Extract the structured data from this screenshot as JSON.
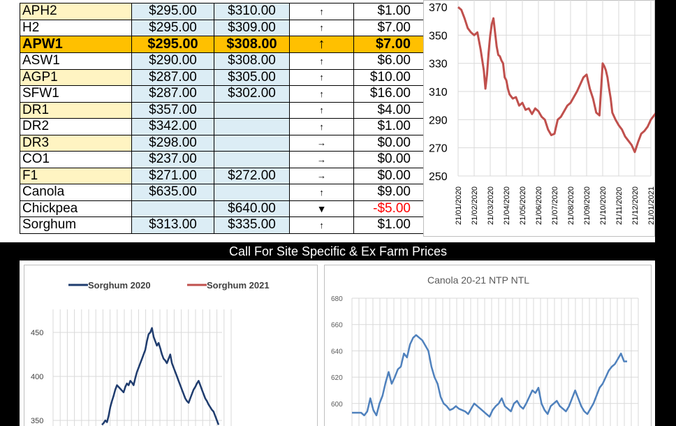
{
  "table": {
    "rows": [
      {
        "grade": "APH2",
        "p1": "$295.00",
        "p2": "$310.00",
        "trend": "↑",
        "change": "$1.00",
        "alt": true
      },
      {
        "grade": "H2",
        "p1": "$295.00",
        "p2": "$309.00",
        "trend": "↑",
        "change": "$7.00",
        "alt": false
      },
      {
        "grade": "APW1",
        "p1": "$295.00",
        "p2": "$308.00",
        "trend": "↑",
        "change": "$7.00",
        "alt": false,
        "highlight": true
      },
      {
        "grade": "ASW1",
        "p1": "$290.00",
        "p2": "$308.00",
        "trend": "↑",
        "change": "$6.00",
        "alt": false
      },
      {
        "grade": "AGP1",
        "p1": "$287.00",
        "p2": "$305.00",
        "trend": "↑",
        "change": "$10.00",
        "alt": true
      },
      {
        "grade": "SFW1",
        "p1": "$287.00",
        "p2": "$302.00",
        "trend": "↑",
        "change": "$16.00",
        "alt": false
      },
      {
        "grade": "DR1",
        "p1": "$357.00",
        "p2": "",
        "trend": "↑",
        "change": "$4.00",
        "alt": true
      },
      {
        "grade": "DR2",
        "p1": "$342.00",
        "p2": "",
        "trend": "↑",
        "change": "$1.00",
        "alt": false
      },
      {
        "grade": "DR3",
        "p1": "$298.00",
        "p2": "",
        "trend": "→",
        "change": "$0.00",
        "alt": true
      },
      {
        "grade": "CO1",
        "p1": "$237.00",
        "p2": "",
        "trend": "→",
        "change": "$0.00",
        "alt": false
      },
      {
        "grade": "F1",
        "p1": "$271.00",
        "p2": "$272.00",
        "trend": "→",
        "change": "$0.00",
        "alt": true
      },
      {
        "grade": "Canola",
        "p1": "$635.00",
        "p2": "",
        "trend": "↑",
        "change": "$9.00",
        "alt": false
      },
      {
        "grade": "Chickpea",
        "p1": "",
        "p2": "$640.00",
        "trend": "▼",
        "change": "-$5.00",
        "alt": false,
        "negative": true
      },
      {
        "grade": "Sorghum",
        "p1": "$313.00",
        "p2": "$335.00",
        "trend": "↑",
        "change": "$1.00",
        "alt": false
      }
    ]
  },
  "banner": {
    "text": "Call For Site Specific & Ex Farm Prices"
  },
  "colors": {
    "red_series": "#c0504d",
    "blue_series": "#4f81bd",
    "navy_series": "#1f3c6e",
    "highlight": "#ffc000",
    "cell_blue": "#dcedf5",
    "cell_yellow": "#fff4c2"
  },
  "charts": [
    {
      "type": "line",
      "id": "apw1-chart",
      "title": "",
      "y_ticks": [
        "350",
        "330",
        "310",
        "290",
        "270",
        "250"
      ],
      "y_partial_top": "370",
      "ylim": [
        250,
        375
      ],
      "x_ticks": [
        "21/01/2020",
        "21/02/2020",
        "21/03/2020",
        "21/04/2020",
        "21/05/2020",
        "21/06/2020",
        "21/07/2020",
        "21/08/2020",
        "21/09/2020",
        "21/10/2020",
        "21/11/2020",
        "21/12/2020",
        "21/01/2021"
      ],
      "series": [
        {
          "color": "#c0504d",
          "x": [
            0,
            0.2,
            0.4,
            0.6,
            0.8,
            1.0,
            1.2,
            1.4,
            1.6,
            1.7,
            1.8,
            1.9,
            2.0,
            2.1,
            2.2,
            2.3,
            2.4,
            2.5,
            2.6,
            2.7,
            2.8,
            2.9,
            3.0,
            3.1,
            3.2,
            3.4,
            3.6,
            3.8,
            4.0,
            4.2,
            4.4,
            4.6,
            4.8,
            5.0,
            5.2,
            5.4,
            5.6,
            5.8,
            6.0,
            6.2,
            6.4,
            6.6,
            6.8,
            7.0,
            7.2,
            7.4,
            7.6,
            7.8,
            8.0,
            8.2,
            8.4,
            8.6,
            8.8,
            9.0,
            9.1,
            9.2,
            9.3,
            9.4,
            9.5,
            9.6,
            9.8,
            10.0,
            10.2,
            10.4,
            10.6,
            10.8,
            11.0,
            11.2,
            11.4,
            11.6,
            11.8,
            12.0,
            12.2,
            12.4,
            12.6,
            12.8,
            13.0
          ],
          "y": [
            370,
            368,
            362,
            355,
            352,
            350,
            352,
            340,
            325,
            312,
            322,
            338,
            350,
            358,
            362,
            352,
            342,
            336,
            335,
            332,
            330,
            320,
            318,
            312,
            308,
            305,
            306,
            300,
            302,
            297,
            298,
            294,
            298,
            296,
            292,
            290,
            283,
            279,
            280,
            290,
            292,
            296,
            300,
            302,
            306,
            310,
            315,
            320,
            322,
            312,
            305,
            295,
            293,
            330,
            328,
            325,
            320,
            312,
            305,
            295,
            290,
            286,
            283,
            278,
            275,
            272,
            267,
            274,
            280,
            282,
            285,
            290,
            293,
            296,
            294,
            292,
            290
          ]
        }
      ]
    },
    {
      "type": "line",
      "id": "sorghum-chart",
      "title": "",
      "legend": [
        {
          "name": "Sorghum 2020",
          "color": "#1f3c6e"
        },
        {
          "name": "Sorghum 2021",
          "color": "#c0504d"
        }
      ],
      "y_ticks": [
        "450",
        "400",
        "350"
      ],
      "ylim": [
        340,
        470
      ],
      "series": [
        {
          "name": "Sorghum 2020",
          "color": "#1f3c6e",
          "x": [
            0,
            1,
            2,
            3,
            4,
            5,
            6,
            7,
            8,
            9,
            10,
            11,
            12,
            13,
            14,
            15,
            16,
            17,
            18,
            19,
            20,
            21,
            22,
            23,
            24,
            25,
            26,
            27,
            28,
            29,
            30,
            31,
            32,
            33,
            34,
            35,
            36,
            37,
            38,
            39,
            40,
            41,
            42,
            43,
            44,
            45,
            46,
            47,
            48,
            49,
            50,
            51,
            52,
            53,
            54,
            55,
            56,
            57,
            58,
            59,
            60,
            61,
            62,
            63,
            64,
            65,
            66,
            67,
            68,
            69,
            70
          ],
          "y": [
            345,
            347,
            350,
            348,
            355,
            365,
            372,
            378,
            385,
            390,
            388,
            386,
            384,
            382,
            388,
            392,
            390,
            395,
            393,
            390,
            398,
            405,
            410,
            415,
            420,
            425,
            430,
            440,
            448,
            450,
            455,
            445,
            440,
            435,
            438,
            432,
            425,
            420,
            418,
            415,
            420,
            425,
            415,
            410,
            405,
            400,
            395,
            390,
            385,
            380,
            375,
            372,
            370,
            375,
            380,
            385,
            388,
            392,
            395,
            390,
            385,
            380,
            375,
            372,
            368,
            365,
            362,
            360,
            355,
            350,
            345
          ]
        },
        {
          "name": "Sorghum 2021",
          "color": "#c0504d",
          "x": [],
          "y": []
        }
      ]
    },
    {
      "type": "line",
      "id": "canola-chart",
      "title": "Canola 20-21 NTP NTL",
      "y_ticks": [
        "680",
        "660",
        "640",
        "620",
        "600"
      ],
      "ylim": [
        590,
        680
      ],
      "series": [
        {
          "color": "#4f81bd",
          "x": [
            0,
            2,
            4,
            6,
            8,
            10,
            12,
            14,
            16,
            18,
            20,
            22,
            24,
            26,
            28,
            30,
            32,
            34,
            36,
            38,
            40,
            42,
            44,
            46,
            48,
            50,
            52,
            54,
            56,
            58,
            60,
            62,
            64,
            66,
            68,
            70,
            72,
            74,
            76,
            78,
            80,
            82,
            84,
            86,
            88,
            90,
            92,
            94,
            96,
            98,
            100,
            102,
            104,
            106,
            108,
            110,
            112,
            114,
            116,
            118,
            120,
            122,
            124,
            126,
            128,
            130,
            132,
            134,
            136,
            138,
            140,
            142,
            144,
            146,
            148,
            150,
            152,
            154,
            156,
            158,
            160,
            162,
            164,
            166,
            168,
            170,
            172,
            174,
            176,
            178,
            180
          ],
          "y": [
            593,
            593,
            593,
            593,
            591,
            594,
            604,
            595,
            591,
            600,
            606,
            616,
            624,
            615,
            620,
            626,
            628,
            638,
            635,
            645,
            650,
            652,
            650,
            648,
            644,
            640,
            628,
            620,
            615,
            605,
            600,
            598,
            595,
            596,
            598,
            596,
            595,
            594,
            592,
            596,
            600,
            598,
            596,
            594,
            592,
            590,
            595,
            598,
            600,
            604,
            598,
            596,
            594,
            600,
            602,
            598,
            596,
            600,
            605,
            610,
            608,
            612,
            600,
            595,
            592,
            598,
            600,
            602,
            598,
            596,
            594,
            598,
            604,
            610,
            604,
            598,
            594,
            592,
            596,
            600,
            606,
            612,
            615,
            620,
            625,
            628,
            630,
            634,
            638,
            632,
            632
          ]
        }
      ]
    }
  ]
}
